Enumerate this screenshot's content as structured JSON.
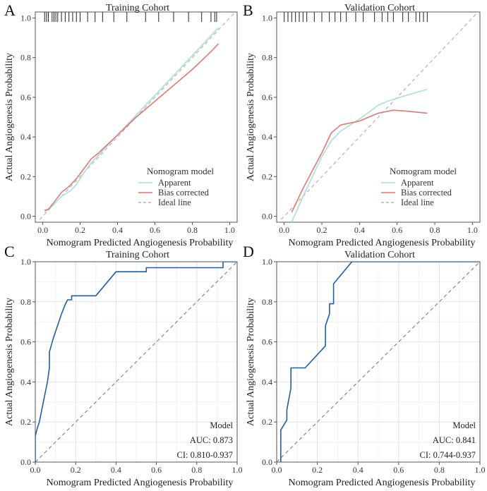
{
  "chart_data": [
    {
      "panel": "A",
      "type": "line",
      "title": "Training Cohort",
      "xlabel": "Nomogram Predicted Angiogenesis Probability",
      "ylabel": "Actual Angiogenesis Probability",
      "xlim": [
        -0.04,
        1.04
      ],
      "ylim": [
        -0.03,
        1.03
      ],
      "xticks": [
        "0.0",
        "0.2",
        "0.4",
        "0.6",
        "0.8",
        "1.0"
      ],
      "yticks": [
        "0.0",
        "0.2",
        "0.4",
        "0.6",
        "0.8",
        "1.0"
      ],
      "grid": false,
      "legend": {
        "title": "Nomogram model",
        "position": "bottom-right"
      },
      "series": [
        {
          "name": "Apparent",
          "color": "#a8e0d8",
          "dash": false,
          "x": [
            0.01,
            0.05,
            0.1,
            0.15,
            0.18,
            0.22,
            0.26,
            0.3,
            0.4,
            0.5,
            0.6,
            0.7,
            0.8,
            0.9,
            0.94
          ],
          "y": [
            0.02,
            0.05,
            0.1,
            0.13,
            0.16,
            0.22,
            0.27,
            0.31,
            0.41,
            0.51,
            0.61,
            0.71,
            0.81,
            0.91,
            0.95
          ]
        },
        {
          "name": "Bias corrected",
          "color": "#e07a6e",
          "dash": false,
          "x": [
            0.01,
            0.03,
            0.06,
            0.1,
            0.14,
            0.18,
            0.22,
            0.26,
            0.3,
            0.4,
            0.5,
            0.6,
            0.7,
            0.8,
            0.9,
            0.94
          ],
          "y": [
            0.03,
            0.035,
            0.07,
            0.12,
            0.15,
            0.19,
            0.24,
            0.29,
            0.32,
            0.41,
            0.5,
            0.58,
            0.66,
            0.74,
            0.83,
            0.87
          ]
        },
        {
          "name": "Ideal line",
          "color": "#b4b4b4",
          "dash": true,
          "x": [
            -0.04,
            1.04
          ],
          "y": [
            -0.04,
            1.04
          ]
        }
      ],
      "rug_x": [
        0.01,
        0.02,
        0.03,
        0.05,
        0.06,
        0.07,
        0.08,
        0.1,
        0.12,
        0.14,
        0.16,
        0.18,
        0.2,
        0.24,
        0.28,
        0.32,
        0.38,
        0.45,
        0.55,
        0.62,
        0.7,
        0.78,
        0.85,
        0.9,
        0.92,
        0.93
      ]
    },
    {
      "panel": "B",
      "type": "line",
      "title": "Validation Cohort",
      "xlabel": "Nomogram Predicted Angiogenesis Probability",
      "ylabel": "Actual Angiogenesis Probability",
      "xlim": [
        -0.04,
        1.04
      ],
      "ylim": [
        -0.03,
        1.03
      ],
      "xticks": [
        "0.0",
        "0.2",
        "0.4",
        "0.6",
        "0.8",
        "1.0"
      ],
      "yticks": [
        "0.0",
        "0.2",
        "0.4",
        "0.6",
        "0.8",
        "1.0"
      ],
      "grid": false,
      "legend": {
        "title": "Nomogram model",
        "position": "bottom-right"
      },
      "series": [
        {
          "name": "Apparent",
          "color": "#a8e0d8",
          "dash": false,
          "x": [
            0.04,
            0.1,
            0.15,
            0.2,
            0.25,
            0.3,
            0.4,
            0.5,
            0.55,
            0.65,
            0.76
          ],
          "y": [
            -0.03,
            0.1,
            0.2,
            0.3,
            0.38,
            0.43,
            0.49,
            0.56,
            0.58,
            0.61,
            0.64
          ]
        },
        {
          "name": "Bias corrected",
          "color": "#e07a6e",
          "dash": false,
          "x": [
            0.04,
            0.1,
            0.15,
            0.2,
            0.25,
            0.3,
            0.4,
            0.5,
            0.58,
            0.65,
            0.76
          ],
          "y": [
            0.02,
            0.14,
            0.23,
            0.32,
            0.42,
            0.46,
            0.48,
            0.52,
            0.535,
            0.53,
            0.52
          ]
        },
        {
          "name": "Ideal line",
          "color": "#b4b4b4",
          "dash": true,
          "x": [
            -0.04,
            1.04
          ],
          "y": [
            -0.04,
            1.04
          ]
        }
      ],
      "rug_x": [
        0.0,
        0.02,
        0.04,
        0.06,
        0.08,
        0.1,
        0.12,
        0.16,
        0.2,
        0.24,
        0.27,
        0.3,
        0.33,
        0.38,
        0.42,
        0.48,
        0.52,
        0.55,
        0.58,
        0.63,
        0.66,
        0.7,
        0.72,
        0.74,
        0.76
      ]
    },
    {
      "panel": "C",
      "type": "line",
      "title": "Training Cohort",
      "xlabel": "Nomogram Predicted Angiogenesis Probability",
      "ylabel": "Actual Angiogenesis Probability",
      "xlim": [
        0,
        1
      ],
      "ylim": [
        0,
        1
      ],
      "xticks": [
        "0.0",
        "0.2",
        "0.4",
        "0.6",
        "0.8",
        "1.0"
      ],
      "yticks": [
        "0.0",
        "0.2",
        "0.4",
        "0.6",
        "0.8",
        "1.0"
      ],
      "grid": true,
      "annotations": [
        "Model",
        "AUC: 0.873",
        "CI: 0.810-0.937"
      ],
      "series": [
        {
          "name": "Model",
          "color": "#1f5fa8",
          "dash": false,
          "x": [
            0,
            0,
            0.01,
            0.02,
            0.03,
            0.04,
            0.05,
            0.06,
            0.07,
            0.07,
            0.09,
            0.11,
            0.13,
            0.15,
            0.16,
            0.17,
            0.18,
            0.18,
            0.3,
            0.4,
            0.55,
            0.55,
            0.93,
            0.93,
            1.0
          ],
          "y": [
            0,
            0.13,
            0.17,
            0.2,
            0.25,
            0.3,
            0.35,
            0.4,
            0.47,
            0.55,
            0.62,
            0.68,
            0.74,
            0.79,
            0.81,
            0.81,
            0.81,
            0.83,
            0.83,
            0.95,
            0.95,
            0.97,
            0.97,
            1.0,
            1.0
          ]
        },
        {
          "name": "Reference",
          "color": "#888888",
          "dash": true,
          "x": [
            0,
            1
          ],
          "y": [
            0,
            1
          ]
        }
      ]
    },
    {
      "panel": "D",
      "type": "line",
      "title": "Validation Cohort",
      "xlabel": "Nomogram Predicted Angiogenesis Probability",
      "ylabel": "Actual Angiogenesis Probability",
      "xlim": [
        0,
        1
      ],
      "ylim": [
        0,
        1
      ],
      "xticks": [
        "0.0",
        "0.2",
        "0.4",
        "0.6",
        "0.8",
        "1.0"
      ],
      "yticks": [
        "0.0",
        "0.2",
        "0.4",
        "0.6",
        "0.8",
        "1.0"
      ],
      "grid": true,
      "annotations": [
        "Model",
        "AUC: 0.841",
        "CI: 0.744-0.937"
      ],
      "series": [
        {
          "name": "Model",
          "color": "#1f5fa8",
          "dash": false,
          "x": [
            0.02,
            0.02,
            0.05,
            0.05,
            0.07,
            0.07,
            0.14,
            0.14,
            0.24,
            0.24,
            0.26,
            0.26,
            0.28,
            0.28,
            0.37,
            0.38,
            1.0
          ],
          "y": [
            0,
            0.16,
            0.21,
            0.26,
            0.37,
            0.47,
            0.47,
            0.47,
            0.58,
            0.68,
            0.74,
            0.79,
            0.79,
            0.89,
            1.0,
            1.0,
            1.0
          ]
        },
        {
          "name": "Reference",
          "color": "#888888",
          "dash": true,
          "x": [
            0,
            1
          ],
          "y": [
            0,
            1
          ]
        }
      ]
    }
  ],
  "panel_letters": [
    "A",
    "B",
    "C",
    "D"
  ]
}
